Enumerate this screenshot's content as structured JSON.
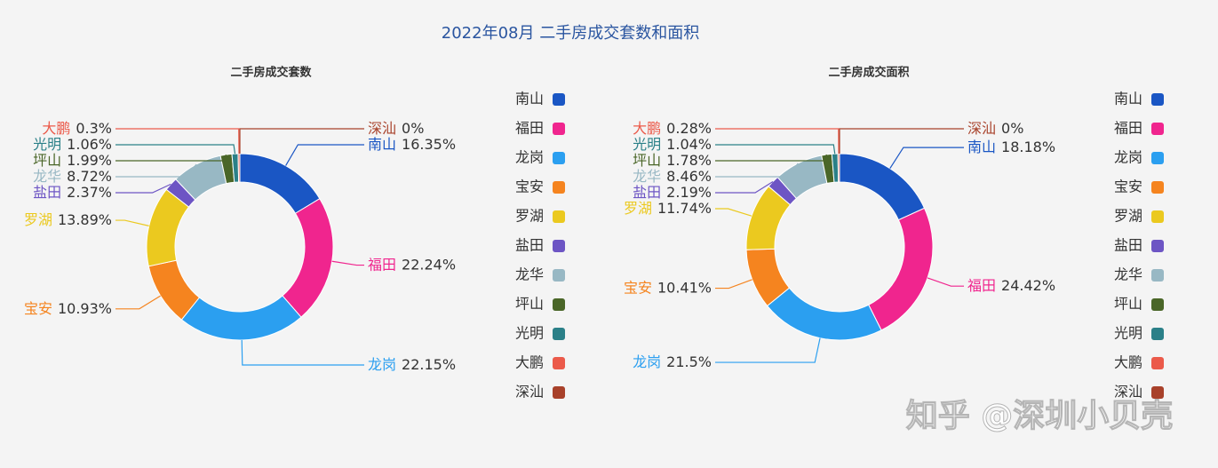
{
  "title": "2022年08月 二手房成交套数和面积",
  "watermark": "知乎 @深圳小贝壳",
  "chart_data": [
    {
      "type": "pie",
      "title": "二手房成交套数",
      "categories": [
        "南山",
        "福田",
        "龙岗",
        "宝安",
        "罗湖",
        "盐田",
        "龙华",
        "坪山",
        "光明",
        "大鹏",
        "深汕"
      ],
      "values": [
        16.35,
        22.24,
        22.15,
        10.93,
        13.89,
        2.37,
        8.72,
        1.99,
        1.06,
        0.3,
        0
      ],
      "value_labels": [
        "16.35%",
        "22.24%",
        "22.15%",
        "10.93%",
        "13.89%",
        "2.37%",
        "8.72%",
        "1.99%",
        "1.06%",
        "0.3%",
        "0%"
      ],
      "colors": [
        "#1a56c4",
        "#f0258e",
        "#2b9ff0",
        "#f5841f",
        "#ebc91f",
        "#6d55c4",
        "#98b8c4",
        "#4a6628",
        "#2b8088",
        "#eb5a4a",
        "#a8412a"
      ],
      "legend": "right"
    },
    {
      "type": "pie",
      "title": "二手房成交面积",
      "categories": [
        "南山",
        "福田",
        "龙岗",
        "宝安",
        "罗湖",
        "盐田",
        "龙华",
        "坪山",
        "光明",
        "大鹏",
        "深汕"
      ],
      "values": [
        18.18,
        24.42,
        21.5,
        10.41,
        11.74,
        2.19,
        8.46,
        1.78,
        1.04,
        0.28,
        0
      ],
      "value_labels": [
        "18.18%",
        "24.42%",
        "21.5%",
        "10.41%",
        "11.74%",
        "2.19%",
        "8.46%",
        "1.78%",
        "1.04%",
        "0.28%",
        "0%"
      ],
      "colors": [
        "#1a56c4",
        "#f0258e",
        "#2b9ff0",
        "#f5841f",
        "#ebc91f",
        "#6d55c4",
        "#98b8c4",
        "#4a6628",
        "#2b8088",
        "#eb5a4a",
        "#a8412a"
      ],
      "legend": "right"
    }
  ]
}
